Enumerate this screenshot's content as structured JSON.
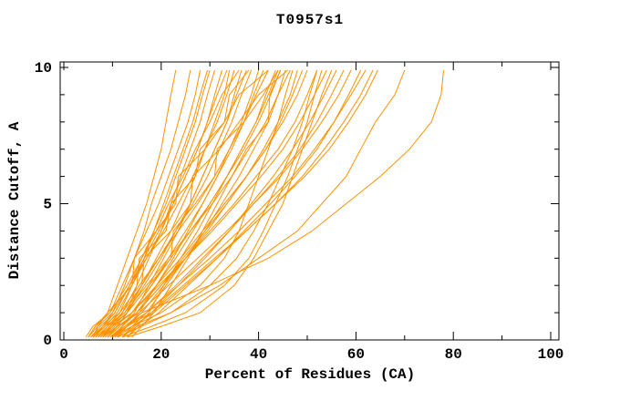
{
  "chart_data": {
    "type": "line",
    "title": "T0957s1",
    "xlabel": "Percent of Residues (CA)",
    "ylabel": "Distance Cutoff, A",
    "xlim": [
      0,
      100
    ],
    "ylim": [
      0,
      10
    ],
    "x_major_ticks": [
      0,
      20,
      40,
      60,
      80,
      100
    ],
    "x_minor_ticks": [
      10,
      30,
      50,
      70,
      90
    ],
    "y_major_ticks": [
      0,
      5,
      10
    ],
    "y_minor_ticks": [
      1,
      2,
      3,
      4,
      6,
      7,
      8,
      9
    ],
    "grid": false,
    "legend": "none",
    "curve_color": "#ff9100",
    "frame_color": "#000000",
    "cutoff_levels": [
      0.1,
      0.5,
      1,
      2,
      3,
      4,
      5,
      6,
      7,
      8,
      9,
      9.9
    ],
    "series_percent_x": [
      [
        5,
        6.5,
        9,
        11,
        13,
        15,
        17,
        18.5,
        20,
        21,
        22,
        23
      ],
      [
        6,
        8,
        10,
        12.5,
        14.5,
        16.5,
        18,
        20,
        22,
        23.5,
        25,
        26
      ],
      [
        4.5,
        6,
        9.5,
        12,
        14.5,
        17,
        19.5,
        21.5,
        23.5,
        25.5,
        27,
        28
      ],
      [
        7,
        9,
        11.5,
        14,
        16.5,
        18.5,
        20.5,
        22.5,
        24.5,
        26.5,
        28,
        29.5
      ],
      [
        5.5,
        7.5,
        10.5,
        13.5,
        16,
        18.5,
        21,
        23,
        25,
        27,
        28.5,
        30
      ],
      [
        8,
        10,
        12,
        15,
        17.5,
        20,
        22,
        24,
        26,
        28,
        29.5,
        31
      ],
      [
        6,
        8.5,
        11,
        14,
        17,
        20,
        22.5,
        25,
        27.5,
        29.5,
        31,
        32.5
      ],
      [
        9,
        11,
        13,
        16,
        19,
        22,
        24.5,
        27,
        29,
        31,
        33,
        34
      ],
      [
        5,
        7,
        10,
        13.5,
        17,
        20.5,
        23.5,
        26.5,
        29,
        31.5,
        33.5,
        35
      ],
      [
        10,
        12,
        14.5,
        17.5,
        20.5,
        23.5,
        26,
        28.5,
        31,
        33.5,
        35,
        36.5
      ],
      [
        7.5,
        10,
        13,
        16.5,
        20,
        23,
        26,
        28.5,
        31,
        33.5,
        35.5,
        37.5
      ],
      [
        6.5,
        9,
        12.5,
        16,
        19.5,
        23,
        26.5,
        29.5,
        32,
        34.5,
        36.5,
        38.5
      ],
      [
        11,
        13,
        15.5,
        19,
        22.5,
        25.5,
        28.5,
        31.5,
        34,
        36.5,
        38.5,
        40
      ],
      [
        8,
        10.5,
        14,
        18,
        21.5,
        25,
        28.5,
        31.5,
        34.5,
        37,
        39,
        41
      ],
      [
        5.5,
        8,
        11.5,
        15.5,
        19.5,
        23.5,
        27.5,
        31,
        34,
        37,
        39.5,
        42
      ],
      [
        9.5,
        12,
        15,
        19,
        23,
        26.5,
        30,
        33.5,
        36.5,
        39.5,
        41.5,
        43.5
      ],
      [
        7,
        9.5,
        13,
        17.5,
        22,
        26,
        30,
        33.5,
        37,
        40,
        42.5,
        44.5
      ],
      [
        12,
        14,
        17,
        21,
        25,
        29,
        32.5,
        36,
        39,
        42,
        44,
        45.5
      ],
      [
        6,
        8.5,
        12.5,
        17,
        21.5,
        26,
        30.5,
        34.5,
        38,
        41.5,
        44,
        46.5
      ],
      [
        10,
        12.5,
        16,
        20.5,
        25,
        29.5,
        33.5,
        37.5,
        41,
        44,
        46.5,
        48
      ],
      [
        8.5,
        11,
        15,
        20,
        24.5,
        29,
        33.5,
        37.5,
        41.5,
        44.5,
        47,
        49
      ],
      [
        7.5,
        10,
        14,
        19,
        24,
        28.5,
        33,
        37.5,
        41.5,
        45,
        48,
        50
      ],
      [
        9,
        11,
        13,
        15,
        15.5,
        21,
        22,
        27,
        28,
        33,
        34,
        38
      ],
      [
        6,
        7,
        9,
        14,
        14.5,
        19,
        23,
        23.5,
        29,
        33,
        36,
        42
      ],
      [
        11,
        12,
        14,
        18,
        22,
        22.5,
        27,
        31,
        31.5,
        37,
        41,
        44
      ],
      [
        8,
        9.5,
        12,
        16,
        16.5,
        22,
        26,
        26.5,
        32,
        36,
        40,
        46
      ],
      [
        9,
        11.5,
        15,
        20,
        25,
        30,
        35,
        39.5,
        44,
        47.5,
        50,
        52
      ],
      [
        7,
        10,
        14,
        19.5,
        25,
        30.5,
        35.5,
        40.5,
        45,
        48.5,
        51.5,
        54
      ],
      [
        12,
        14.5,
        18,
        23.5,
        29,
        34,
        38.5,
        43,
        47,
        50.5,
        53.5,
        56
      ],
      [
        10.5,
        13,
        17,
        23,
        28.5,
        34,
        39,
        44,
        48.5,
        52,
        55,
        57.5
      ],
      [
        8,
        11,
        15.5,
        21.5,
        27.5,
        33.5,
        39,
        44.5,
        49,
        53,
        56.5,
        59
      ],
      [
        13,
        15.5,
        19.5,
        25.5,
        31.5,
        37,
        42.5,
        47.5,
        52,
        55.5,
        58.5,
        61
      ],
      [
        9.5,
        12.5,
        17,
        23.5,
        30,
        36,
        41.5,
        47,
        51.5,
        55.5,
        59,
        62
      ],
      [
        11,
        14,
        18.5,
        25,
        31.5,
        37.5,
        43.5,
        49,
        53.5,
        57.5,
        61,
        63.5
      ],
      [
        10,
        13,
        18,
        24.5,
        31,
        37.5,
        43.5,
        49.5,
        54.5,
        58.5,
        62,
        64.5
      ],
      [
        10,
        14,
        20,
        28,
        33,
        36,
        38,
        40,
        42,
        44,
        45.5,
        47
      ],
      [
        12,
        18,
        25,
        33,
        38,
        41,
        43.5,
        46,
        48,
        50,
        51.5,
        53
      ],
      [
        11,
        16,
        22,
        30,
        35.5,
        39,
        42,
        44.5,
        47,
        49,
        50.5,
        52
      ],
      [
        13,
        20,
        28,
        35,
        39,
        42,
        45,
        47,
        49,
        51,
        53,
        55
      ],
      [
        12,
        15,
        22,
        32,
        40,
        48,
        53,
        58,
        61,
        64,
        68,
        70
      ],
      [
        10,
        13,
        16,
        30,
        42,
        51,
        58,
        65,
        71,
        75.5,
        77.5,
        78
      ],
      [
        5,
        6.5,
        9.5,
        13,
        16,
        19,
        21.5,
        24.5,
        27,
        30,
        32.5,
        36
      ],
      [
        14,
        16,
        18.5,
        22,
        25.5,
        28.5,
        31.5,
        34.5,
        37.5,
        42,
        42.3,
        44.5
      ],
      [
        6.5,
        8,
        10.5,
        13.5,
        16.5,
        19.5,
        22.5,
        25,
        27.5,
        29.5,
        31.5,
        33.5
      ],
      [
        13,
        15,
        17.5,
        20.5,
        24,
        27.5,
        30.5,
        33.5,
        36.5,
        39.5,
        42,
        44
      ]
    ]
  }
}
